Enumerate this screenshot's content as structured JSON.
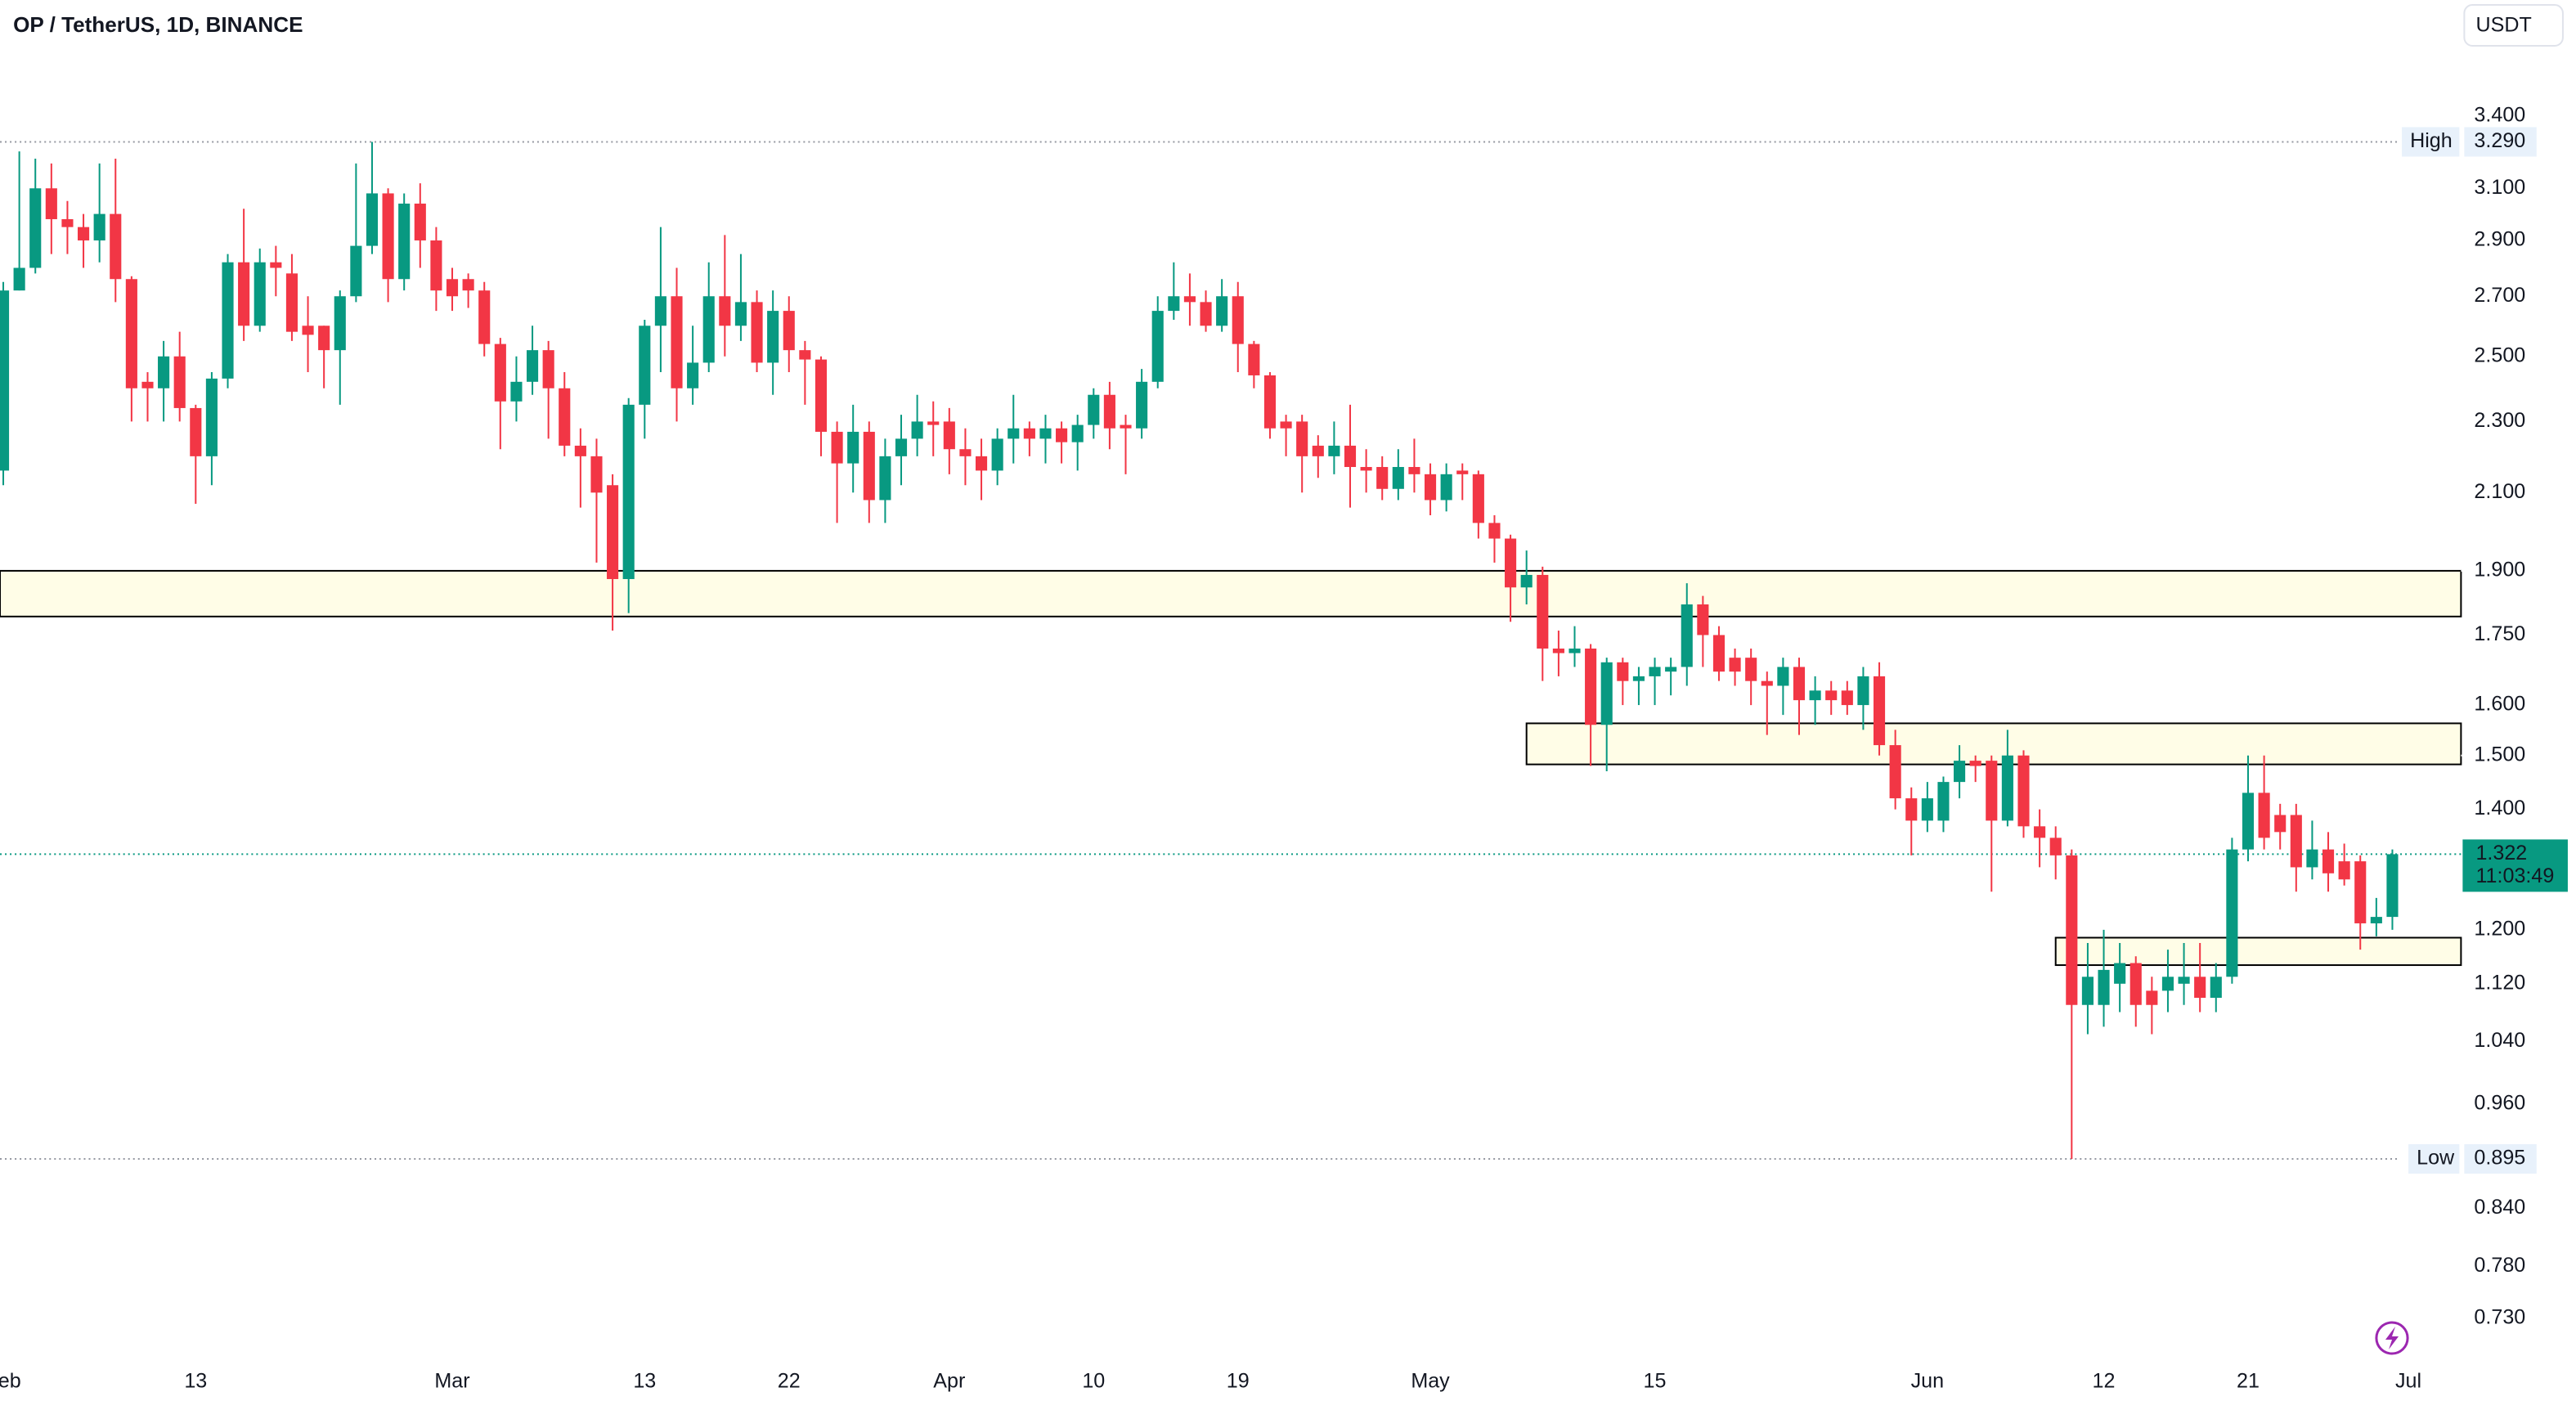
{
  "chart_data": {
    "type": "candlestick",
    "title": "OP / TetherUS, 1D, BINANCE",
    "currency": "USDT",
    "up_color": "#089981",
    "down_color": "#f23645",
    "log_scale": true,
    "xlim": [
      -0.205,
      153.28
    ],
    "ylim": [
      0.694,
      3.945
    ],
    "xticks": [
      {
        "value": 0,
        "label": "Feb"
      },
      {
        "value": 12,
        "label": "13"
      },
      {
        "value": 28,
        "label": "Mar"
      },
      {
        "value": 40,
        "label": "13"
      },
      {
        "value": 49,
        "label": "22"
      },
      {
        "value": 59,
        "label": "Apr"
      },
      {
        "value": 68,
        "label": "10"
      },
      {
        "value": 77,
        "label": "19"
      },
      {
        "value": 89,
        "label": "May"
      },
      {
        "value": 103,
        "label": "15"
      },
      {
        "value": 120,
        "label": "Jun"
      },
      {
        "value": 131,
        "label": "12"
      },
      {
        "value": 140,
        "label": "21"
      },
      {
        "value": 150,
        "label": "Jul"
      }
    ],
    "yticks": [
      {
        "value": 3.4,
        "label": "3.400"
      },
      {
        "value": 3.1,
        "label": "3.100"
      },
      {
        "value": 2.9,
        "label": "2.900"
      },
      {
        "value": 2.7,
        "label": "2.700"
      },
      {
        "value": 2.5,
        "label": "2.500"
      },
      {
        "value": 2.3,
        "label": "2.300"
      },
      {
        "value": 2.1,
        "label": "2.100"
      },
      {
        "value": 1.9,
        "label": "1.900"
      },
      {
        "value": 1.75,
        "label": "1.750"
      },
      {
        "value": 1.6,
        "label": "1.600"
      },
      {
        "value": 1.5,
        "label": "1.500"
      },
      {
        "value": 1.4,
        "label": "1.400"
      },
      {
        "value": 1.2,
        "label": "1.200"
      },
      {
        "value": 1.12,
        "label": "1.120"
      },
      {
        "value": 1.04,
        "label": "1.040"
      },
      {
        "value": 0.96,
        "label": "0.960"
      },
      {
        "value": 0.84,
        "label": "0.840"
      },
      {
        "value": 0.78,
        "label": "0.780"
      },
      {
        "value": 0.73,
        "label": "0.730"
      }
    ],
    "open": [
      2.16,
      2.72,
      2.8,
      3.1,
      2.98,
      2.95,
      2.9,
      3.0,
      2.76,
      2.42,
      2.4,
      2.5,
      2.34,
      2.2,
      2.43,
      2.82,
      2.6,
      2.82,
      2.78,
      2.6,
      2.6,
      2.52,
      2.7,
      2.88,
      3.08,
      2.76,
      3.04,
      2.9,
      2.76,
      2.76,
      2.72,
      2.54,
      2.36,
      2.42,
      2.52,
      2.4,
      2.23,
      2.2,
      2.12,
      1.88,
      2.35,
      2.6,
      2.7,
      2.4,
      2.48,
      2.7,
      2.6,
      2.68,
      2.48,
      2.65,
      2.52,
      2.49,
      2.27,
      2.18,
      2.27,
      2.08,
      2.2,
      2.25,
      2.3,
      2.3,
      2.22,
      2.2,
      2.16,
      2.25,
      2.28,
      2.25,
      2.28,
      2.24,
      2.29,
      2.38,
      2.29,
      2.28,
      2.42,
      2.65,
      2.7,
      2.68,
      2.6,
      2.7,
      2.54,
      2.44,
      2.3,
      2.3,
      2.23,
      2.2,
      2.23,
      2.17,
      2.17,
      2.11,
      2.17,
      2.15,
      2.08,
      2.16,
      2.15,
      2.02,
      1.98,
      1.86,
      1.89,
      1.72,
      1.71,
      1.72,
      1.56,
      1.69,
      1.65,
      1.66,
      1.67,
      1.68,
      1.82,
      1.75,
      1.7,
      1.7,
      1.65,
      1.64,
      1.68,
      1.61,
      1.63,
      1.63,
      1.6,
      1.66,
      1.52,
      1.42,
      1.38,
      1.38,
      1.45,
      1.49,
      1.49,
      1.38,
      1.5,
      1.37,
      1.35,
      1.32,
      1.09,
      1.09,
      1.12,
      1.15,
      1.11,
      1.11,
      1.12,
      1.13,
      1.1,
      1.13,
      1.33,
      1.43,
      1.39,
      1.39,
      1.3,
      1.33,
      1.31,
      1.31,
      1.21,
      1.22
    ],
    "high": [
      2.75,
      3.25,
      3.22,
      3.2,
      3.05,
      3.0,
      3.2,
      3.22,
      2.77,
      2.45,
      2.55,
      2.58,
      2.35,
      2.45,
      2.85,
      3.02,
      2.87,
      2.88,
      2.85,
      2.7,
      2.6,
      2.72,
      3.2,
      3.29,
      3.1,
      3.08,
      3.12,
      2.95,
      2.8,
      2.78,
      2.75,
      2.56,
      2.5,
      2.6,
      2.55,
      2.45,
      2.28,
      2.25,
      2.15,
      2.37,
      2.62,
      2.95,
      2.8,
      2.6,
      2.82,
      2.92,
      2.85,
      2.72,
      2.72,
      2.7,
      2.55,
      2.5,
      2.3,
      2.35,
      2.3,
      2.25,
      2.32,
      2.38,
      2.36,
      2.34,
      2.28,
      2.25,
      2.28,
      2.38,
      2.3,
      2.32,
      2.3,
      2.32,
      2.4,
      2.42,
      2.32,
      2.46,
      2.7,
      2.82,
      2.78,
      2.72,
      2.76,
      2.75,
      2.55,
      2.45,
      2.32,
      2.32,
      2.26,
      2.3,
      2.35,
      2.22,
      2.2,
      2.22,
      2.25,
      2.18,
      2.18,
      2.18,
      2.16,
      2.04,
      1.99,
      1.95,
      1.91,
      1.76,
      1.77,
      1.73,
      1.7,
      1.7,
      1.68,
      1.7,
      1.7,
      1.87,
      1.84,
      1.77,
      1.72,
      1.72,
      1.67,
      1.7,
      1.7,
      1.66,
      1.65,
      1.65,
      1.68,
      1.69,
      1.55,
      1.44,
      1.45,
      1.46,
      1.52,
      1.5,
      1.5,
      1.55,
      1.51,
      1.4,
      1.37,
      1.33,
      1.18,
      1.2,
      1.18,
      1.16,
      1.13,
      1.17,
      1.18,
      1.18,
      1.15,
      1.35,
      1.5,
      1.5,
      1.41,
      1.41,
      1.38,
      1.36,
      1.34,
      1.32,
      1.25,
      1.33
    ],
    "low": [
      2.12,
      2.72,
      2.78,
      2.85,
      2.85,
      2.8,
      2.82,
      2.68,
      2.3,
      2.3,
      2.3,
      2.3,
      2.07,
      2.12,
      2.4,
      2.55,
      2.58,
      2.7,
      2.55,
      2.45,
      2.4,
      2.35,
      2.68,
      2.85,
      2.68,
      2.72,
      2.8,
      2.65,
      2.65,
      2.66,
      2.5,
      2.22,
      2.3,
      2.38,
      2.25,
      2.2,
      2.06,
      1.92,
      1.76,
      1.8,
      2.25,
      2.45,
      2.3,
      2.35,
      2.45,
      2.5,
      2.55,
      2.45,
      2.38,
      2.45,
      2.35,
      2.2,
      2.02,
      2.1,
      2.02,
      2.02,
      2.12,
      2.2,
      2.2,
      2.15,
      2.12,
      2.08,
      2.12,
      2.18,
      2.2,
      2.18,
      2.18,
      2.16,
      2.25,
      2.22,
      2.15,
      2.25,
      2.4,
      2.62,
      2.6,
      2.58,
      2.58,
      2.45,
      2.4,
      2.25,
      2.2,
      2.1,
      2.14,
      2.15,
      2.06,
      2.1,
      2.08,
      2.08,
      2.1,
      2.04,
      2.05,
      2.08,
      1.98,
      1.92,
      1.78,
      1.82,
      1.65,
      1.66,
      1.68,
      1.48,
      1.47,
      1.6,
      1.6,
      1.6,
      1.62,
      1.64,
      1.68,
      1.65,
      1.64,
      1.6,
      1.54,
      1.58,
      1.54,
      1.56,
      1.58,
      1.58,
      1.55,
      1.5,
      1.4,
      1.32,
      1.36,
      1.36,
      1.42,
      1.45,
      1.26,
      1.37,
      1.35,
      1.3,
      1.28,
      0.895,
      1.05,
      1.06,
      1.08,
      1.06,
      1.05,
      1.08,
      1.09,
      1.08,
      1.08,
      1.12,
      1.31,
      1.33,
      1.33,
      1.26,
      1.28,
      1.26,
      1.27,
      1.17,
      1.19,
      1.2
    ],
    "close": [
      2.72,
      2.8,
      3.1,
      2.98,
      2.95,
      2.9,
      3.0,
      2.76,
      2.4,
      2.4,
      2.5,
      2.34,
      2.2,
      2.43,
      2.82,
      2.6,
      2.82,
      2.8,
      2.58,
      2.57,
      2.52,
      2.7,
      2.88,
      3.08,
      2.76,
      3.04,
      2.9,
      2.72,
      2.7,
      2.72,
      2.54,
      2.36,
      2.42,
      2.52,
      2.4,
      2.23,
      2.2,
      2.1,
      1.88,
      2.35,
      2.6,
      2.7,
      2.4,
      2.48,
      2.7,
      2.6,
      2.68,
      2.48,
      2.65,
      2.52,
      2.49,
      2.27,
      2.18,
      2.27,
      2.08,
      2.2,
      2.25,
      2.3,
      2.29,
      2.22,
      2.2,
      2.16,
      2.25,
      2.28,
      2.25,
      2.28,
      2.24,
      2.29,
      2.38,
      2.28,
      2.28,
      2.42,
      2.65,
      2.7,
      2.68,
      2.6,
      2.7,
      2.54,
      2.44,
      2.28,
      2.28,
      2.2,
      2.2,
      2.23,
      2.17,
      2.16,
      2.11,
      2.17,
      2.15,
      2.08,
      2.15,
      2.15,
      2.02,
      1.98,
      1.86,
      1.89,
      1.72,
      1.71,
      1.72,
      1.56,
      1.69,
      1.65,
      1.66,
      1.68,
      1.68,
      1.82,
      1.75,
      1.67,
      1.67,
      1.65,
      1.64,
      1.68,
      1.61,
      1.63,
      1.61,
      1.6,
      1.66,
      1.52,
      1.42,
      1.38,
      1.42,
      1.45,
      1.49,
      1.48,
      1.38,
      1.5,
      1.37,
      1.35,
      1.32,
      1.09,
      1.13,
      1.14,
      1.15,
      1.09,
      1.09,
      1.13,
      1.13,
      1.1,
      1.13,
      1.33,
      1.43,
      1.35,
      1.36,
      1.3,
      1.33,
      1.29,
      1.28,
      1.21,
      1.22,
      1.322
    ],
    "high_marker": {
      "label": "High",
      "value": 3.29,
      "value_label": "3.290"
    },
    "low_marker": {
      "label": "Low",
      "value": 0.895,
      "value_label": "0.895"
    },
    "last_price": {
      "value": 1.322,
      "countdown": "11:03:49"
    },
    "zones": [
      {
        "top": 1.9,
        "bottom": 1.792,
        "start": null
      },
      {
        "top": 1.563,
        "bottom": 1.483,
        "start": 95
      },
      {
        "top": 1.188,
        "bottom": 1.147,
        "start": 128
      }
    ]
  }
}
